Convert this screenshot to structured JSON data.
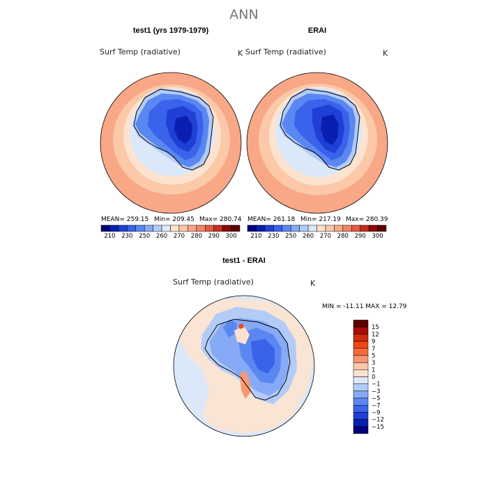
{
  "figure": {
    "title": "ANN"
  },
  "chart_data": [
    {
      "type": "heatmap",
      "panel_title": "test1 (yrs 1979-1979)",
      "variable": "Surf Temp (radiative)",
      "units": "K",
      "projection": "south-polar-stereographic",
      "stats": {
        "mean_label": "MEAN= 259.15",
        "min_label": "Min= 209.45",
        "max_label": "Max= 280.74",
        "mean": 259.15,
        "min": 209.45,
        "max": 280.74
      },
      "colorbar": {
        "orientation": "horizontal",
        "levels": [
          210,
          220,
          230,
          240,
          250,
          255,
          260,
          265,
          270,
          275,
          280,
          285,
          290,
          295,
          300
        ],
        "tick_labels": [
          "210",
          "230",
          "250",
          "260",
          "270",
          "280",
          "290",
          "300"
        ]
      }
    },
    {
      "type": "heatmap",
      "panel_title": "ERAI",
      "variable": "Surf Temp (radiative)",
      "units": "K",
      "projection": "south-polar-stereographic",
      "stats": {
        "mean_label": "MEAN= 261.18",
        "min_label": "Min= 217.19",
        "max_label": "Max= 280.39",
        "mean": 261.18,
        "min": 217.19,
        "max": 280.39
      },
      "colorbar": {
        "orientation": "horizontal",
        "levels": [
          210,
          220,
          230,
          240,
          250,
          255,
          260,
          265,
          270,
          275,
          280,
          285,
          290,
          295,
          300
        ],
        "tick_labels": [
          "210",
          "230",
          "250",
          "260",
          "270",
          "280",
          "290",
          "300"
        ]
      }
    },
    {
      "type": "heatmap",
      "panel_title": "test1 - ERAI",
      "variable": "Surf Temp (radiative)",
      "units": "K",
      "projection": "south-polar-stereographic",
      "stats": {
        "minmax_label": "MIN = -11.11 MAX =  12.79",
        "min": -11.11,
        "max": 12.79
      },
      "colorbar": {
        "orientation": "vertical",
        "levels": [
          15,
          12,
          9,
          7,
          5,
          3,
          1,
          0,
          -1,
          -3,
          -5,
          -7,
          -9,
          -12,
          -15
        ],
        "tick_labels": [
          "15",
          "12",
          "9",
          "7",
          "5",
          "3",
          "1",
          "0",
          "−1",
          "−3",
          "−5",
          "−7",
          "−9",
          "−12",
          "−15"
        ]
      }
    }
  ],
  "colors": {
    "abs_scale": [
      "#00007a",
      "#0a1fb0",
      "#1f3fd6",
      "#3a62ea",
      "#5a87f2",
      "#86aaf5",
      "#b3ccf7",
      "#dbe8fa",
      "#fde3cf",
      "#fbc8a8",
      "#f8a787",
      "#f28467",
      "#e25a3f",
      "#c3301f",
      "#8c0a08",
      "#5c0000"
    ],
    "diff_scale": [
      "#5c0000",
      "#a60e06",
      "#d22b0d",
      "#ee4718",
      "#f66a3a",
      "#f89872",
      "#fbc8a8",
      "#fde3cf",
      "#dbe8fa",
      "#b3ccf7",
      "#86aaf5",
      "#5a87f2",
      "#3a62ea",
      "#1f3fd6",
      "#0a1fb0",
      "#00007a"
    ]
  }
}
